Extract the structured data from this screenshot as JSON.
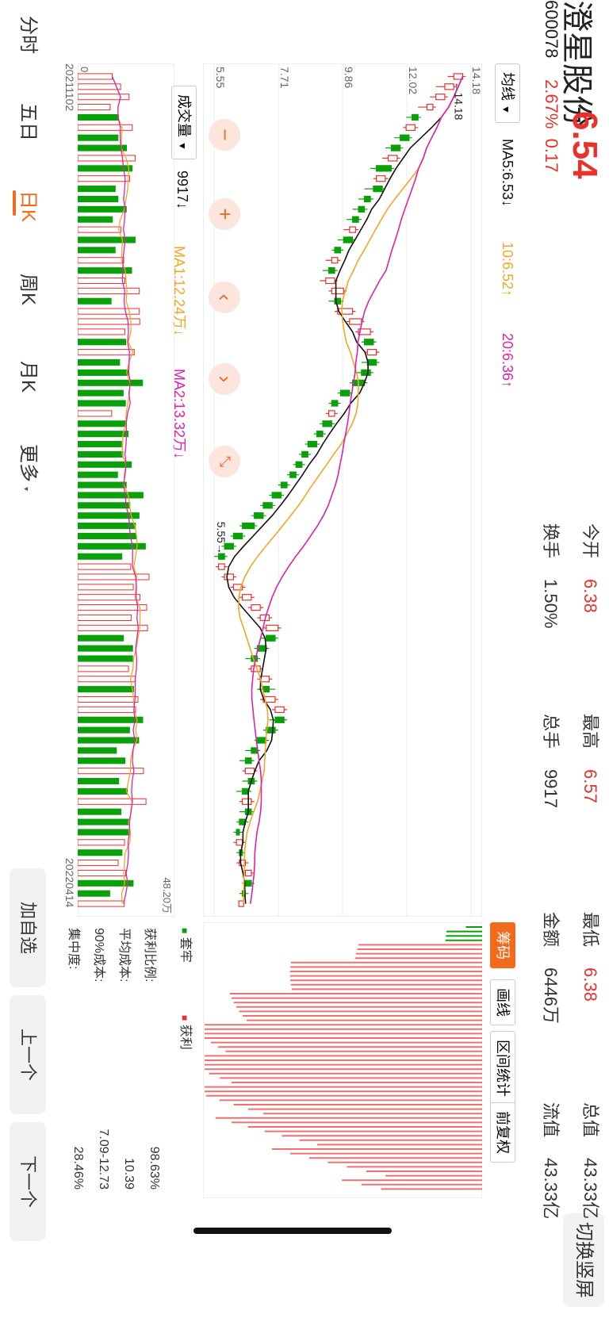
{
  "stock": {
    "name": "澄星股份",
    "price": "6.54",
    "code": "600078",
    "change_pct": "2.67%",
    "change": "0.17"
  },
  "stats": [
    {
      "label": "今开",
      "value": "6.38",
      "color": "#e8312b"
    },
    {
      "label": "最高",
      "value": "6.57",
      "color": "#e8312b"
    },
    {
      "label": "最低",
      "value": "6.38",
      "color": "#e8312b"
    },
    {
      "label": "总值",
      "value": "43.33亿",
      "color": "#333333"
    },
    {
      "label": "换手",
      "value": "1.50%",
      "color": "#333333"
    },
    {
      "label": "总手",
      "value": "9917",
      "color": "#333333"
    },
    {
      "label": "金额",
      "value": "6446万",
      "color": "#333333"
    },
    {
      "label": "流值",
      "value": "43.33亿",
      "color": "#333333"
    }
  ],
  "switch_label": "切换竖屏",
  "ma_legend": {
    "selector": "均线",
    "ma5": "MA5:6.53↓",
    "ma10": "10:6.52↑",
    "ma20": "20:6.36↑"
  },
  "vol_legend": {
    "selector": "成交量",
    "vol": "9917↓",
    "ma1": "MA1:12.24万↓",
    "ma2": "MA2:13.32万↓",
    "max_label": "48.20万",
    "zero_label": "0"
  },
  "price_axis": [
    "14.18",
    "12.02",
    "9.86",
    "7.71",
    "5.55"
  ],
  "annotations": {
    "high": "←14.18",
    "low": "5.55→"
  },
  "dates": {
    "start": "20211102",
    "end": "20220414"
  },
  "chip_tabs": [
    "筹码",
    "画线",
    "区间统计",
    "前复权"
  ],
  "chip_legend": {
    "trapped": "套牢",
    "profit": "获利"
  },
  "chip_stats": [
    {
      "label": "获利比例:",
      "value": "98.63%"
    },
    {
      "label": "平均成本:",
      "value": "10.39"
    },
    {
      "label": "90%成本:",
      "value": "7.09-12.73"
    },
    {
      "label": "集中度:",
      "value": "28.46%"
    }
  ],
  "nav": [
    "分时",
    "五日",
    "日K",
    "周K",
    "月K",
    "更多"
  ],
  "nav_active": "日K",
  "side_buttons": [
    "加自选",
    "上一个",
    "下一个"
  ],
  "colors": {
    "up": "#e8312b",
    "down": "#0aa00a",
    "ma5": "#111111",
    "ma10": "#f5a623",
    "ma20": "#e020b0",
    "accent": "#f26a1b"
  },
  "chart_data": {
    "type": "candlestick",
    "x_range": [
      "20211102",
      "20220414"
    ],
    "ylim": [
      5.55,
      14.18
    ],
    "high": 14.18,
    "low": 5.55,
    "candles": [
      [
        13.6,
        13.9,
        13.4,
        14.0
      ],
      [
        13.3,
        13.6,
        13.0,
        13.7
      ],
      [
        13.0,
        13.3,
        12.8,
        13.4
      ],
      [
        12.7,
        12.9,
        12.4,
        13.0
      ],
      [
        12.4,
        12.2,
        12.0,
        12.5
      ],
      [
        12.0,
        12.3,
        11.9,
        12.4
      ],
      [
        12.1,
        11.8,
        11.6,
        12.2
      ],
      [
        11.8,
        11.5,
        11.3,
        11.9
      ],
      [
        11.4,
        11.7,
        11.2,
        11.8
      ],
      [
        11.5,
        11.0,
        10.8,
        11.6
      ],
      [
        11.0,
        11.3,
        10.9,
        11.4
      ],
      [
        11.2,
        10.9,
        10.6,
        11.3
      ],
      [
        10.8,
        10.6,
        10.4,
        10.9
      ],
      [
        10.6,
        10.4,
        10.2,
        10.7
      ],
      [
        10.4,
        10.2,
        10.0,
        10.5
      ],
      [
        10.1,
        10.3,
        9.9,
        10.4
      ],
      [
        10.2,
        9.9,
        9.7,
        10.3
      ],
      [
        9.8,
        9.6,
        9.5,
        9.9
      ],
      [
        9.5,
        9.7,
        9.3,
        9.8
      ],
      [
        9.6,
        9.4,
        9.2,
        9.7
      ],
      [
        9.3,
        9.6,
        9.1,
        9.7
      ],
      [
        9.5,
        9.9,
        9.4,
        10.0
      ],
      [
        9.8,
        9.6,
        9.4,
        9.9
      ],
      [
        9.7,
        10.2,
        9.6,
        10.3
      ],
      [
        10.1,
        10.5,
        10.0,
        10.6
      ],
      [
        10.4,
        10.8,
        10.3,
        10.9
      ],
      [
        10.9,
        10.6,
        10.5,
        11.0
      ],
      [
        10.7,
        11.0,
        10.6,
        11.1
      ],
      [
        11.0,
        10.7,
        10.5,
        11.1
      ],
      [
        10.8,
        10.5,
        10.3,
        10.9
      ],
      [
        10.6,
        10.2,
        10.1,
        10.7
      ],
      [
        10.1,
        9.8,
        9.7,
        10.2
      ],
      [
        9.7,
        9.5,
        9.4,
        9.8
      ],
      [
        9.4,
        9.6,
        9.3,
        9.7
      ],
      [
        9.5,
        9.2,
        9.1,
        9.6
      ],
      [
        9.2,
        9.0,
        8.9,
        9.3
      ],
      [
        9.0,
        8.7,
        8.6,
        9.1
      ],
      [
        8.7,
        8.5,
        8.4,
        8.8
      ],
      [
        8.5,
        8.3,
        8.2,
        8.6
      ],
      [
        8.3,
        8.1,
        8.0,
        8.4
      ],
      [
        8.0,
        7.8,
        7.7,
        8.1
      ],
      [
        7.8,
        7.5,
        7.4,
        7.9
      ],
      [
        7.5,
        7.2,
        7.1,
        7.6
      ],
      [
        7.2,
        6.9,
        6.8,
        7.3
      ],
      [
        6.9,
        6.5,
        6.4,
        7.0
      ],
      [
        6.5,
        6.2,
        6.1,
        6.6
      ],
      [
        6.2,
        5.9,
        5.8,
        6.3
      ],
      [
        5.9,
        5.7,
        5.55,
        6.0
      ],
      [
        5.7,
        5.9,
        5.6,
        6.0
      ],
      [
        5.9,
        6.2,
        5.8,
        6.3
      ],
      [
        6.2,
        6.5,
        6.1,
        6.6
      ],
      [
        6.5,
        6.8,
        6.4,
        6.9
      ],
      [
        6.8,
        7.1,
        6.7,
        7.2
      ],
      [
        7.1,
        7.4,
        7.0,
        7.5
      ],
      [
        7.3,
        7.7,
        7.2,
        7.8
      ],
      [
        7.6,
        7.3,
        7.1,
        7.7
      ],
      [
        7.3,
        7.0,
        6.9,
        7.4
      ],
      [
        7.0,
        6.8,
        6.6,
        7.1
      ],
      [
        6.8,
        7.1,
        6.7,
        7.2
      ],
      [
        7.1,
        7.4,
        7.0,
        7.5
      ],
      [
        7.4,
        7.2,
        7.0,
        7.6
      ],
      [
        7.2,
        7.6,
        7.1,
        7.7
      ],
      [
        7.6,
        7.9,
        7.5,
        8.0
      ],
      [
        7.9,
        7.6,
        7.4,
        8.0
      ],
      [
        7.6,
        7.3,
        7.2,
        7.7
      ],
      [
        7.3,
        7.0,
        6.9,
        7.4
      ],
      [
        7.0,
        6.8,
        6.6,
        7.1
      ],
      [
        6.8,
        6.6,
        6.4,
        6.9
      ],
      [
        6.6,
        6.9,
        6.5,
        7.0
      ],
      [
        6.9,
        6.7,
        6.5,
        7.0
      ],
      [
        6.7,
        6.5,
        6.3,
        6.8
      ],
      [
        6.5,
        6.8,
        6.4,
        6.9
      ],
      [
        6.8,
        6.6,
        6.4,
        6.9
      ],
      [
        6.6,
        6.4,
        6.3,
        6.7
      ],
      [
        6.4,
        6.3,
        6.2,
        6.5
      ],
      [
        6.3,
        6.5,
        6.2,
        6.6
      ],
      [
        6.5,
        6.4,
        6.3,
        6.6
      ],
      [
        6.4,
        6.6,
        6.3,
        6.7
      ],
      [
        6.6,
        6.8,
        6.5,
        6.9
      ],
      [
        6.8,
        6.6,
        6.5,
        6.9
      ],
      [
        6.6,
        6.5,
        6.4,
        6.7
      ],
      [
        6.38,
        6.54,
        6.38,
        6.57
      ]
    ]
  }
}
